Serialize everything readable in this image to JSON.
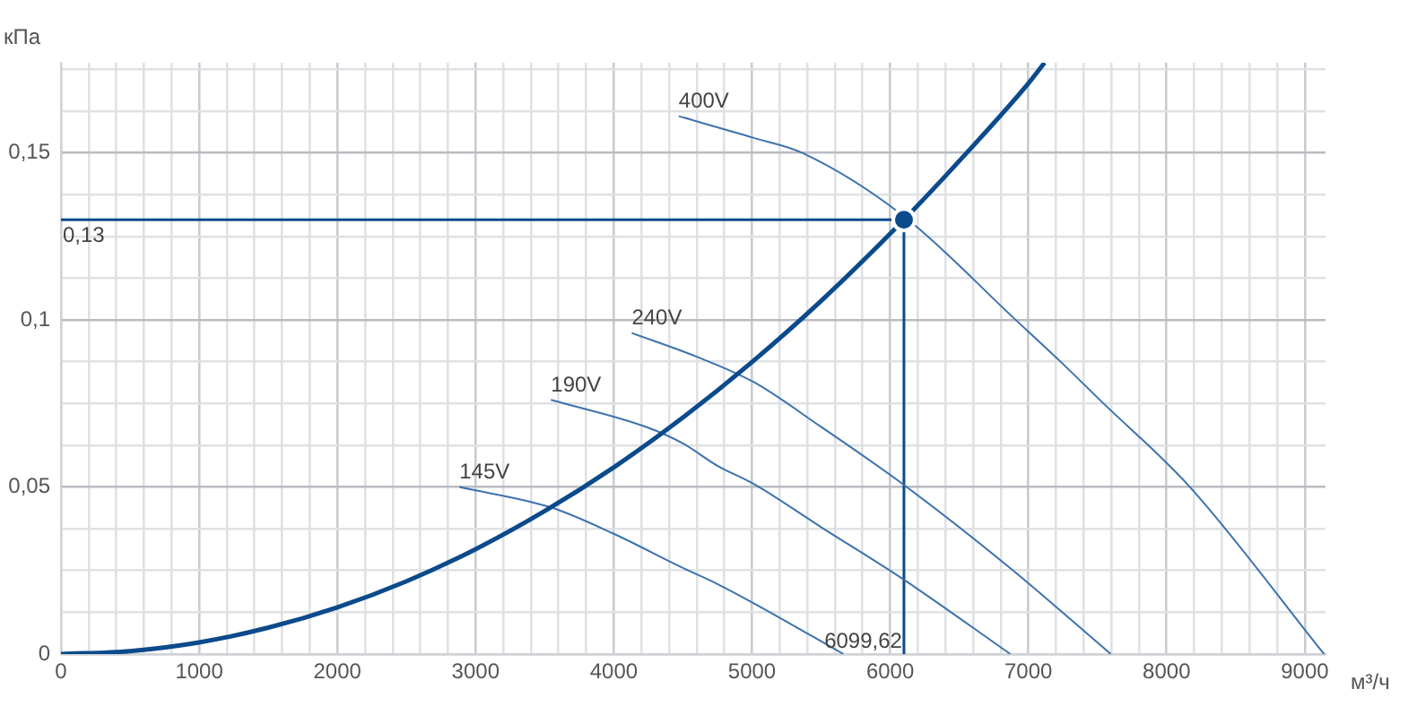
{
  "chart_data": {
    "type": "line",
    "xlabel": "м³/ч",
    "ylabel": "кПа",
    "xlim": [
      0,
      9150
    ],
    "ylim": [
      0,
      0.177
    ],
    "xticks": [
      0,
      {
        "value": 200,
        "label": null
      },
      {
        "value": 400,
        "label": null
      },
      {
        "value": 600,
        "label": null
      },
      {
        "value": 800,
        "label": null
      },
      1000,
      {
        "value": 1200,
        "label": null
      },
      {
        "value": 1400,
        "label": null
      },
      {
        "value": 1600,
        "label": null
      },
      {
        "value": 1800,
        "label": null
      },
      2000,
      {
        "value": 2200,
        "label": null
      },
      {
        "value": 2400,
        "label": null
      },
      {
        "value": 2600,
        "label": null
      },
      {
        "value": 2800,
        "label": null
      },
      3000,
      {
        "value": 3200,
        "label": null
      },
      {
        "value": 3400,
        "label": null
      },
      {
        "value": 3600,
        "label": null
      },
      {
        "value": 3800,
        "label": null
      },
      4000,
      {
        "value": 4200,
        "label": null
      },
      {
        "value": 4400,
        "label": null
      },
      {
        "value": 4600,
        "label": null
      },
      {
        "value": 4800,
        "label": null
      },
      5000,
      {
        "value": 5200,
        "label": null
      },
      {
        "value": 5400,
        "label": null
      },
      {
        "value": 5600,
        "label": null
      },
      {
        "value": 5800,
        "label": null
      },
      6000,
      {
        "value": 6200,
        "label": null
      },
      {
        "value": 6400,
        "label": null
      },
      {
        "value": 6600,
        "label": null
      },
      {
        "value": 6800,
        "label": null
      },
      7000,
      {
        "value": 7200,
        "label": null
      },
      {
        "value": 7400,
        "label": null
      },
      {
        "value": 7600,
        "label": null
      },
      {
        "value": 7800,
        "label": null
      },
      8000,
      {
        "value": 8200,
        "label": null
      },
      {
        "value": 8400,
        "label": null
      },
      {
        "value": 8600,
        "label": null
      },
      {
        "value": 8800,
        "label": null
      },
      9000
    ],
    "yticks": [
      0,
      {
        "value": 0.0125,
        "label": null
      },
      {
        "value": 0.025,
        "label": null
      },
      {
        "value": 0.0375,
        "label": null
      },
      {
        "value": 0.05,
        "label": "0,05"
      },
      {
        "value": 0.0625,
        "label": null
      },
      {
        "value": 0.075,
        "label": null
      },
      {
        "value": 0.0875,
        "label": null
      },
      {
        "value": 0.1,
        "label": "0,1"
      },
      {
        "value": 0.1125,
        "label": null
      },
      {
        "value": 0.125,
        "label": null
      },
      {
        "value": 0.1375,
        "label": null
      },
      {
        "value": 0.15,
        "label": "0,15"
      },
      {
        "value": 0.1625,
        "label": null
      },
      {
        "value": 0.175,
        "label": null
      }
    ],
    "grid": true,
    "legend": false,
    "marker": "none",
    "line_style": "solid",
    "series": [
      {
        "color": "#0b4a8b",
        "x": [
          0,
          500,
          1000,
          1500,
          2000,
          2500,
          3000,
          3500,
          4000,
          4500,
          5000,
          5500,
          6099.62,
          6500,
          7000,
          7117
        ],
        "values": [
          0,
          0.0009,
          0.0035,
          0.0079,
          0.014,
          0.0218,
          0.0314,
          0.0428,
          0.0559,
          0.0708,
          0.0874,
          0.1057,
          0.13,
          0.1476,
          0.1708,
          0.177
        ]
      },
      {
        "name": "400V",
        "color": "#3d72ad",
        "x": [
          4470,
          5013,
          5364,
          6100,
          6909,
          7221,
          7519,
          8169,
          9140
        ],
        "values": [
          0.161,
          0.1545,
          0.15,
          0.131,
          0.1,
          0.088,
          0.076,
          0.05,
          0
        ]
      },
      {
        "name": "240V",
        "color": "#3d72ad",
        "x": [
          4130,
          4600,
          5013,
          5500,
          6091,
          6870,
          7597
        ],
        "values": [
          0.0961,
          0.089,
          0.0814,
          0.068,
          0.0509,
          0.0257,
          0
        ]
      },
      {
        "name": "190V",
        "color": "#3d72ad",
        "x": [
          3545,
          4234,
          4494,
          4753,
          5013,
          5500,
          6091,
          6870
        ],
        "values": [
          0.0761,
          0.068,
          0.0632,
          0.0563,
          0.0509,
          0.038,
          0.0225,
          0
        ]
      },
      {
        "name": "145V",
        "color": "#3d72ad",
        "x": [
          2883,
          3545,
          4000,
          4494,
          4753,
          5013,
          5662
        ],
        "values": [
          0.05,
          0.0439,
          0.036,
          0.0259,
          0.0209,
          0.0152,
          0
        ]
      },
      {
        "type": "scatter",
        "marker": "circle",
        "color": "#0b4a8b",
        "x": [
          6099.62
        ],
        "values": [
          0.13
        ]
      }
    ],
    "ref_lines": [
      {
        "axis": "y",
        "value": 0.13,
        "label": "0,13",
        "color": "#0b4a8b",
        "line_style": "solid"
      },
      {
        "axis": "x",
        "value": 6099.62,
        "label": "6099,62",
        "color": "#0b4a8b",
        "line_style": "solid"
      }
    ]
  }
}
